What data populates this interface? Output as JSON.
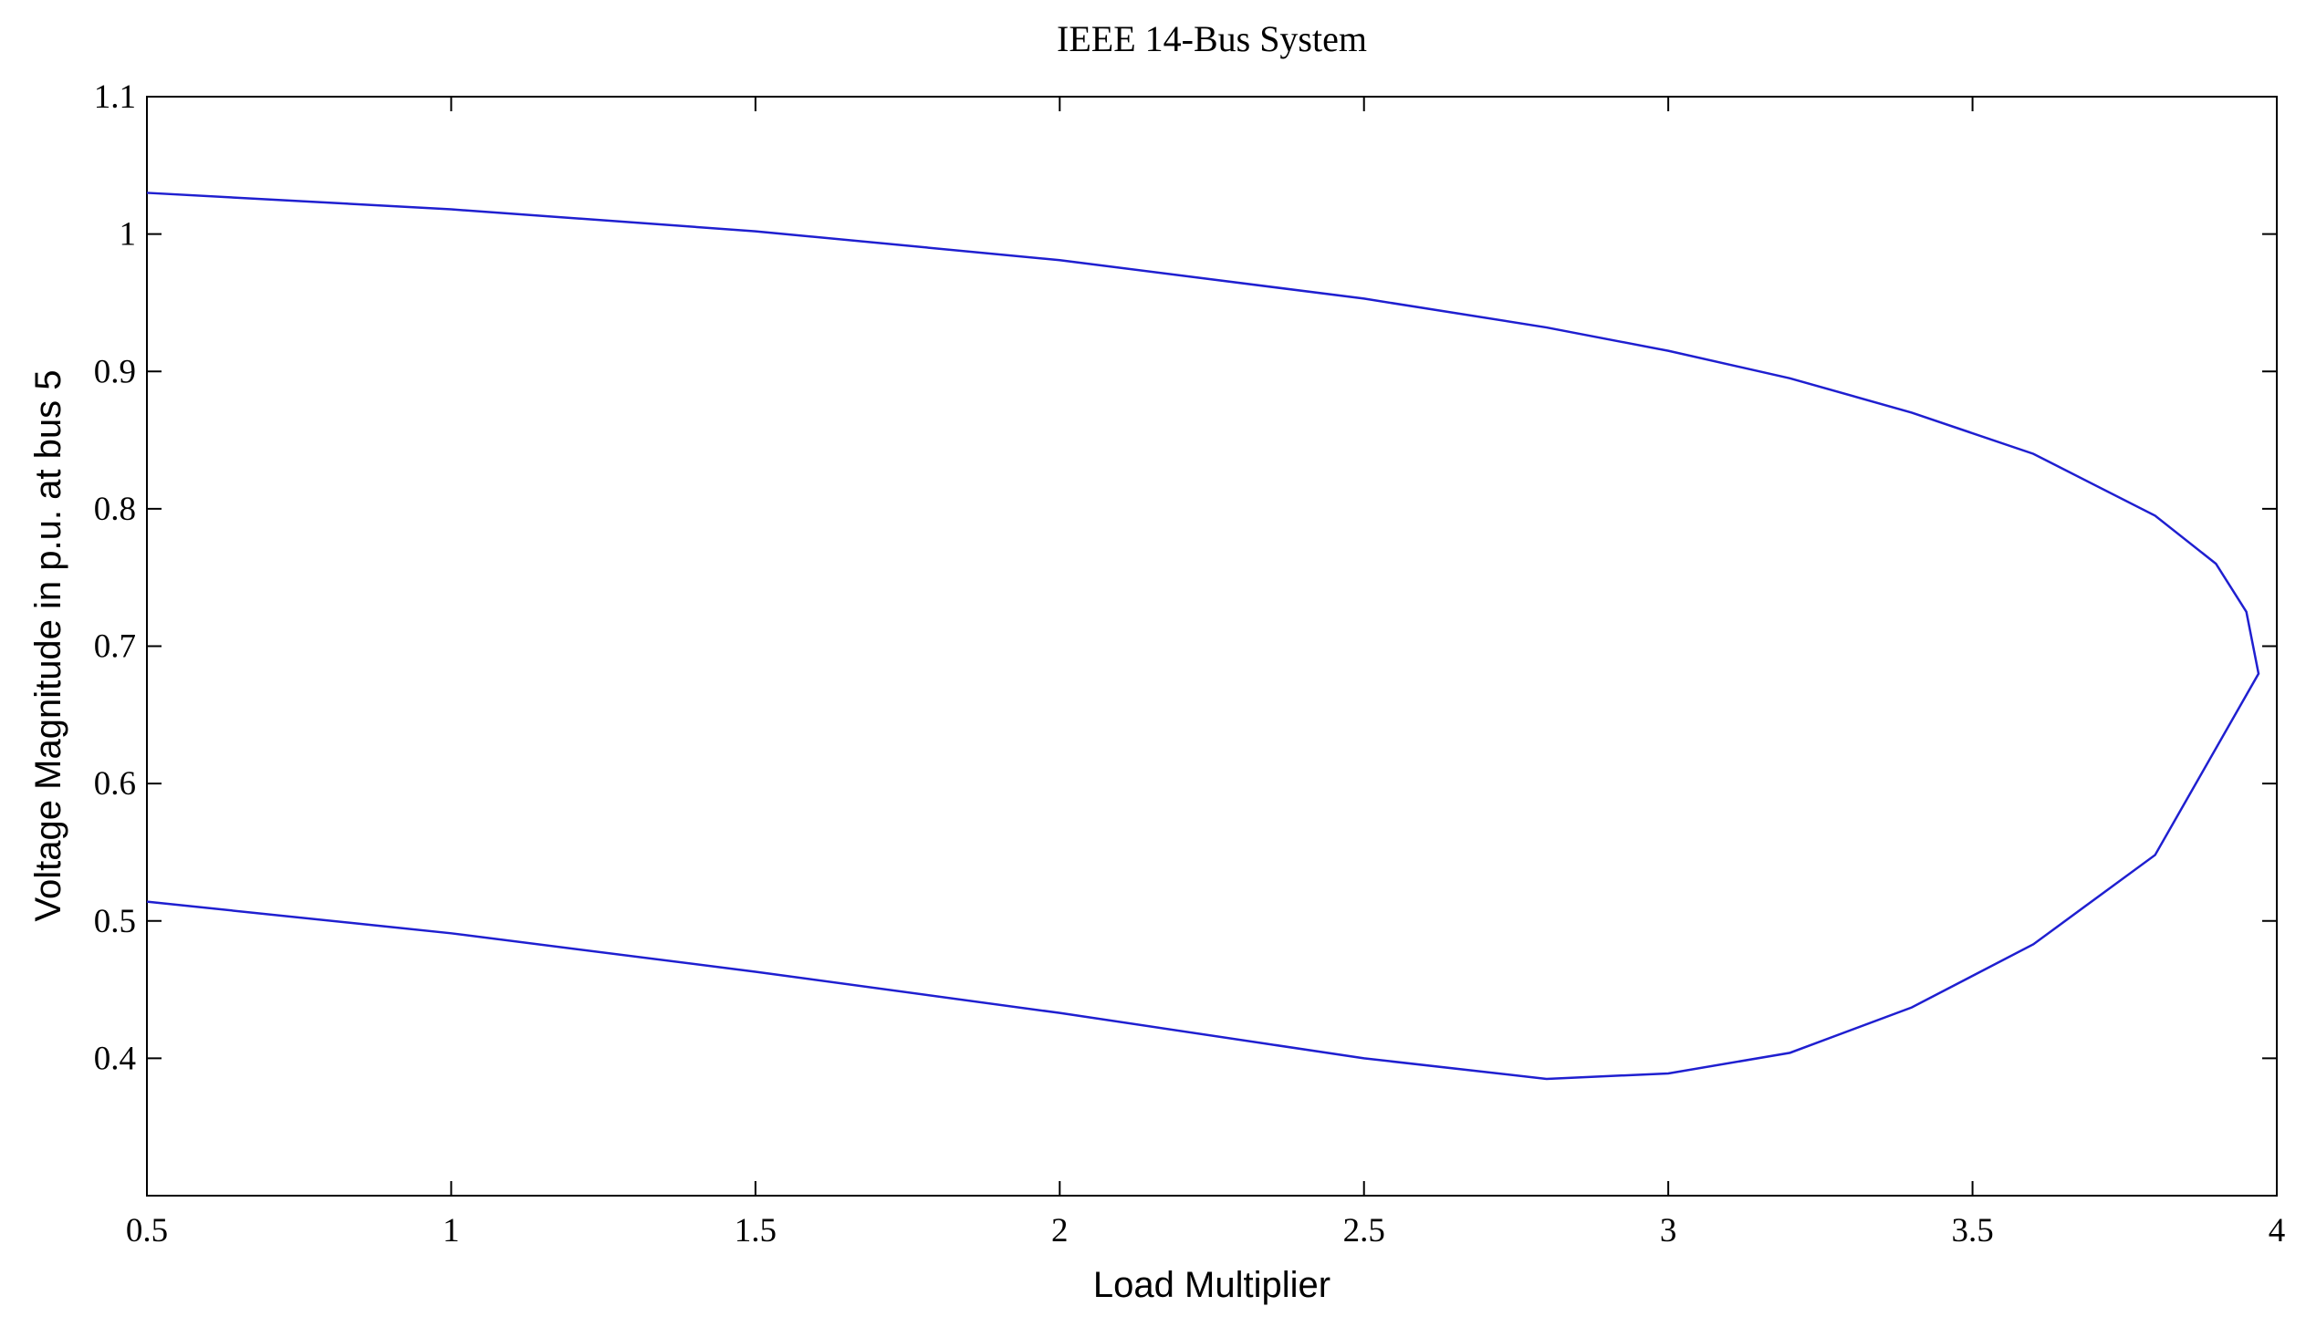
{
  "chart_data": {
    "type": "line",
    "title": "IEEE 14-Bus System",
    "x_label": "Load Multiplier",
    "y_label": "Voltage Magnitude in p.u. at bus 5",
    "x": [
      0.5,
      1,
      1.5,
      2,
      2.5,
      2.8,
      3,
      3.2,
      3.4,
      3.6,
      3.8,
      3.9,
      3.95,
      3.97,
      3.8,
      3.6,
      3.4,
      3.2,
      3,
      2.8,
      2.5,
      2,
      1.5,
      1,
      0.5
    ],
    "series": [
      {
        "color": "#1f1fd0",
        "values": [
          1.03,
          1.018,
          1.002,
          0.981,
          0.953,
          0.932,
          0.915,
          0.895,
          0.87,
          0.84,
          0.795,
          0.76,
          0.725,
          0.68,
          0.548,
          0.483,
          0.437,
          0.404,
          0.389,
          0.385,
          0.4,
          0.433,
          0.463,
          0.491,
          0.514
        ]
      }
    ],
    "xlim": [
      0.5,
      4
    ],
    "xticks": [
      0.5,
      1,
      1.5,
      2,
      2.5,
      3,
      3.5,
      4
    ],
    "ylim": [
      0.3,
      1.1
    ],
    "yticks": [
      0.4,
      0.5,
      0.6,
      0.7,
      0.8,
      0.9,
      1,
      1.1
    ]
  }
}
